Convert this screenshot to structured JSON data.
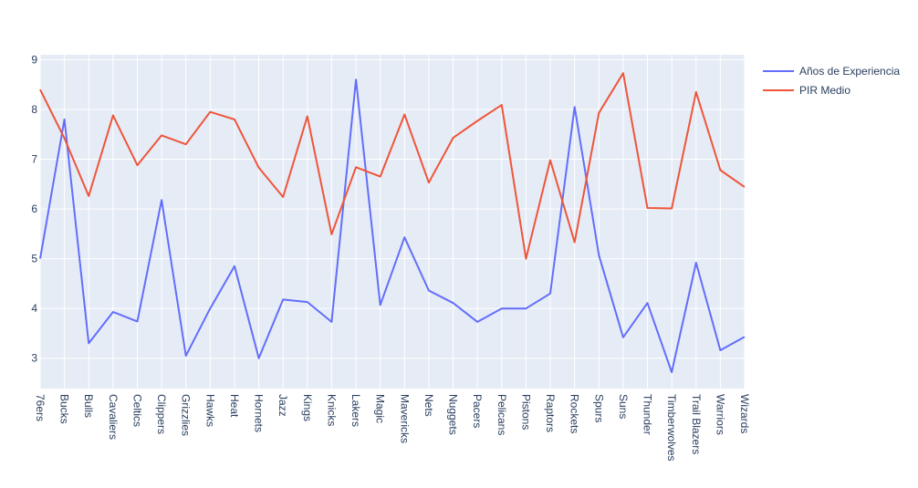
{
  "chart_data": {
    "type": "line",
    "categories": [
      "76ers",
      "Bucks",
      "Bulls",
      "Cavaliers",
      "Celtics",
      "Clippers",
      "Grizzlies",
      "Hawks",
      "Heat",
      "Hornets",
      "Jazz",
      "Kings",
      "Knicks",
      "Lakers",
      "Magic",
      "Mavericks",
      "Nets",
      "Nuggets",
      "Pacers",
      "Pelicans",
      "Pistons",
      "Raptors",
      "Rockets",
      "Spurs",
      "Suns",
      "Thunder",
      "Timberwolves",
      "Trail Blazers",
      "Warriors",
      "Wizards"
    ],
    "series": [
      {
        "name": "Años de Experiencia",
        "color": "#636efa",
        "values": [
          5.0,
          7.8,
          3.3,
          3.93,
          3.74,
          6.18,
          3.05,
          4.0,
          4.85,
          3.0,
          4.18,
          4.13,
          3.73,
          8.6,
          4.07,
          5.43,
          4.36,
          4.11,
          3.73,
          4.0,
          4.0,
          4.3,
          8.05,
          5.07,
          3.42,
          4.11,
          2.72,
          4.92,
          3.16,
          3.43
        ]
      },
      {
        "name": "PIR Medio",
        "color": "#ef553b",
        "values": [
          8.4,
          7.42,
          6.26,
          7.88,
          6.88,
          7.48,
          7.3,
          7.95,
          7.8,
          6.83,
          6.24,
          7.86,
          5.49,
          6.84,
          6.65,
          7.9,
          6.53,
          7.43,
          7.77,
          8.09,
          5.0,
          6.98,
          5.33,
          7.93,
          8.73,
          6.02,
          6.01,
          8.35,
          6.78,
          6.44
        ]
      }
    ],
    "yticks": [
      3,
      4,
      5,
      6,
      7,
      8,
      9
    ],
    "ylim": [
      2.39,
      9.1
    ],
    "grid": true,
    "legend_position": "top-right"
  }
}
